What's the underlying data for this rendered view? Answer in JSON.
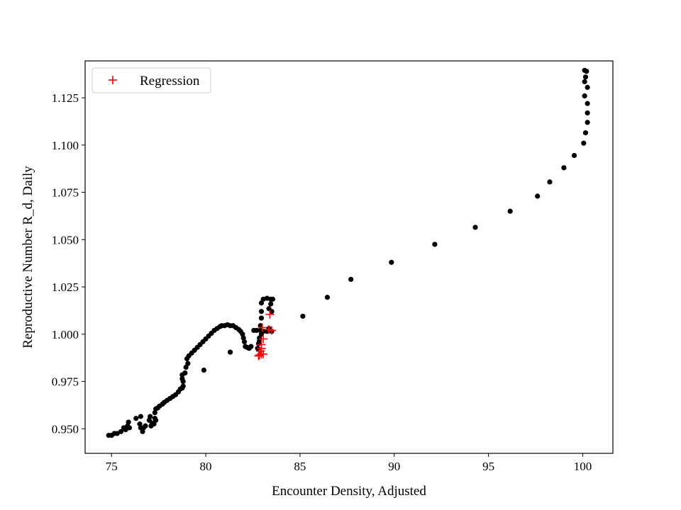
{
  "chart_data": {
    "type": "scatter",
    "xlabel": "Encounter Density, Adjusted",
    "ylabel": "Reproductive Number R_d, Daily",
    "xlim": [
      73.6,
      101.6
    ],
    "ylim": [
      0.937,
      1.1445
    ],
    "xticks": [
      75,
      80,
      85,
      90,
      95,
      100
    ],
    "xtick_labels": [
      "75",
      "80",
      "85",
      "90",
      "95",
      "100"
    ],
    "yticks": [
      0.95,
      0.975,
      1.0,
      1.025,
      1.05,
      1.075,
      1.1,
      1.125
    ],
    "ytick_labels": [
      "0.950",
      "0.975",
      "1.000",
      "1.025",
      "1.050",
      "1.075",
      "1.100",
      "1.125"
    ],
    "grid": false,
    "legend": {
      "position": "top-left",
      "entries": [
        {
          "label": "Regression",
          "marker": "+",
          "color": "#ff0000"
        }
      ]
    },
    "colors": {
      "data_points": "#000000",
      "regression": "#ff0000"
    },
    "series": [
      {
        "marker": "circle",
        "color": "#000000",
        "points": [
          [
            100.1,
            1.1395
          ],
          [
            100.2,
            1.139
          ],
          [
            100.15,
            1.136
          ],
          [
            100.1,
            1.1335
          ],
          [
            100.25,
            1.1305
          ],
          [
            100.1,
            1.126
          ],
          [
            100.25,
            1.122
          ],
          [
            100.25,
            1.117
          ],
          [
            100.25,
            1.112
          ],
          [
            100.15,
            1.1065
          ],
          [
            100.05,
            1.101
          ],
          [
            99.55,
            1.0945
          ],
          [
            99.0,
            1.088
          ],
          [
            98.25,
            1.0805
          ],
          [
            97.6,
            1.073
          ],
          [
            96.15,
            1.065
          ],
          [
            94.3,
            1.0565
          ],
          [
            92.15,
            1.0475
          ],
          [
            89.85,
            1.038
          ],
          [
            87.7,
            1.029
          ],
          [
            86.45,
            1.0195
          ],
          [
            85.15,
            1.0095
          ],
          [
            83.55,
            1.0185
          ],
          [
            83.45,
            1.016
          ],
          [
            83.35,
            1.0135
          ],
          [
            83.5,
            1.012
          ],
          [
            83.45,
            1.0185
          ],
          [
            83.25,
            1.019
          ],
          [
            83.05,
            1.0185
          ],
          [
            82.95,
            1.0165
          ],
          [
            82.95,
            1.012
          ],
          [
            82.95,
            1.0085
          ],
          [
            82.9,
            1.0045
          ],
          [
            82.9,
            1.002
          ],
          [
            83.05,
            1.0015
          ],
          [
            83.25,
            1.0015
          ],
          [
            83.35,
            1.003
          ],
          [
            83.5,
            1.0015
          ],
          [
            82.95,
            1.0
          ],
          [
            82.85,
            0.998
          ],
          [
            82.8,
            0.995
          ],
          [
            82.75,
            0.9925
          ],
          [
            82.85,
            0.9965
          ],
          [
            82.7,
            1.002
          ],
          [
            82.55,
            1.002
          ],
          [
            82.4,
            0.9935
          ],
          [
            82.3,
            0.9925
          ],
          [
            82.2,
            0.993
          ],
          [
            82.1,
            0.9935
          ],
          [
            82.05,
            0.996
          ],
          [
            82.0,
            0.998
          ],
          [
            81.95,
            1.0
          ],
          [
            81.85,
            1.0015
          ],
          [
            81.75,
            1.0025
          ],
          [
            81.6,
            1.0035
          ],
          [
            81.45,
            1.0045
          ],
          [
            81.3,
            1.0045
          ],
          [
            81.15,
            1.005
          ],
          [
            81.0,
            1.0045
          ],
          [
            80.85,
            1.0045
          ],
          [
            80.75,
            1.004
          ],
          [
            80.6,
            1.003
          ],
          [
            80.45,
            1.002
          ],
          [
            80.3,
            1.0005
          ],
          [
            80.15,
            0.999
          ],
          [
            80.0,
            0.9975
          ],
          [
            79.85,
            0.996
          ],
          [
            79.7,
            0.9945
          ],
          [
            79.55,
            0.993
          ],
          [
            79.4,
            0.9915
          ],
          [
            79.25,
            0.99
          ],
          [
            79.1,
            0.9885
          ],
          [
            79.0,
            0.987
          ],
          [
            79.05,
            0.9845
          ],
          [
            81.3,
            0.9905
          ],
          [
            79.9,
            0.981
          ],
          [
            78.95,
            0.9825
          ],
          [
            78.9,
            0.9795
          ],
          [
            78.75,
            0.9785
          ],
          [
            78.75,
            0.9765
          ],
          [
            78.8,
            0.975
          ],
          [
            78.8,
            0.9725
          ],
          [
            78.75,
            0.9715
          ],
          [
            78.65,
            0.971
          ],
          [
            78.55,
            0.9695
          ],
          [
            78.4,
            0.968
          ],
          [
            78.25,
            0.967
          ],
          [
            78.1,
            0.966
          ],
          [
            77.95,
            0.965
          ],
          [
            77.8,
            0.964
          ],
          [
            77.7,
            0.963
          ],
          [
            77.55,
            0.962
          ],
          [
            77.45,
            0.961
          ],
          [
            77.35,
            0.9605
          ],
          [
            77.3,
            0.9585
          ],
          [
            77.3,
            0.9555
          ],
          [
            77.35,
            0.9545
          ],
          [
            77.25,
            0.9525
          ],
          [
            77.1,
            0.9515
          ],
          [
            77.15,
            0.953
          ],
          [
            77.0,
            0.9545
          ],
          [
            77.05,
            0.9565
          ],
          [
            76.8,
            0.9515
          ],
          [
            76.7,
            0.9505
          ],
          [
            76.65,
            0.9485
          ],
          [
            76.55,
            0.9505
          ],
          [
            76.5,
            0.9525
          ],
          [
            76.55,
            0.9565
          ],
          [
            76.3,
            0.9555
          ],
          [
            75.95,
            0.9505
          ],
          [
            75.9,
            0.9535
          ],
          [
            75.85,
            0.9515
          ],
          [
            75.75,
            0.9495
          ],
          [
            75.65,
            0.9505
          ],
          [
            75.5,
            0.9485
          ],
          [
            75.3,
            0.9475
          ],
          [
            75.15,
            0.9475
          ],
          [
            75.0,
            0.9465
          ],
          [
            74.85,
            0.9465
          ]
        ]
      },
      {
        "name": "Regression",
        "marker": "+",
        "color": "#ff0000",
        "points": [
          [
            83.0,
            1.0035
          ],
          [
            83.35,
            1.0025
          ],
          [
            83.5,
            1.002
          ],
          [
            83.05,
            0.9975
          ],
          [
            82.95,
            0.9945
          ],
          [
            82.95,
            0.9925
          ],
          [
            82.9,
            0.991
          ],
          [
            82.95,
            0.9895
          ],
          [
            82.85,
            0.989
          ],
          [
            83.05,
            0.9895
          ],
          [
            82.8,
            0.9885
          ],
          [
            83.4,
            1.0105
          ]
        ]
      }
    ]
  }
}
